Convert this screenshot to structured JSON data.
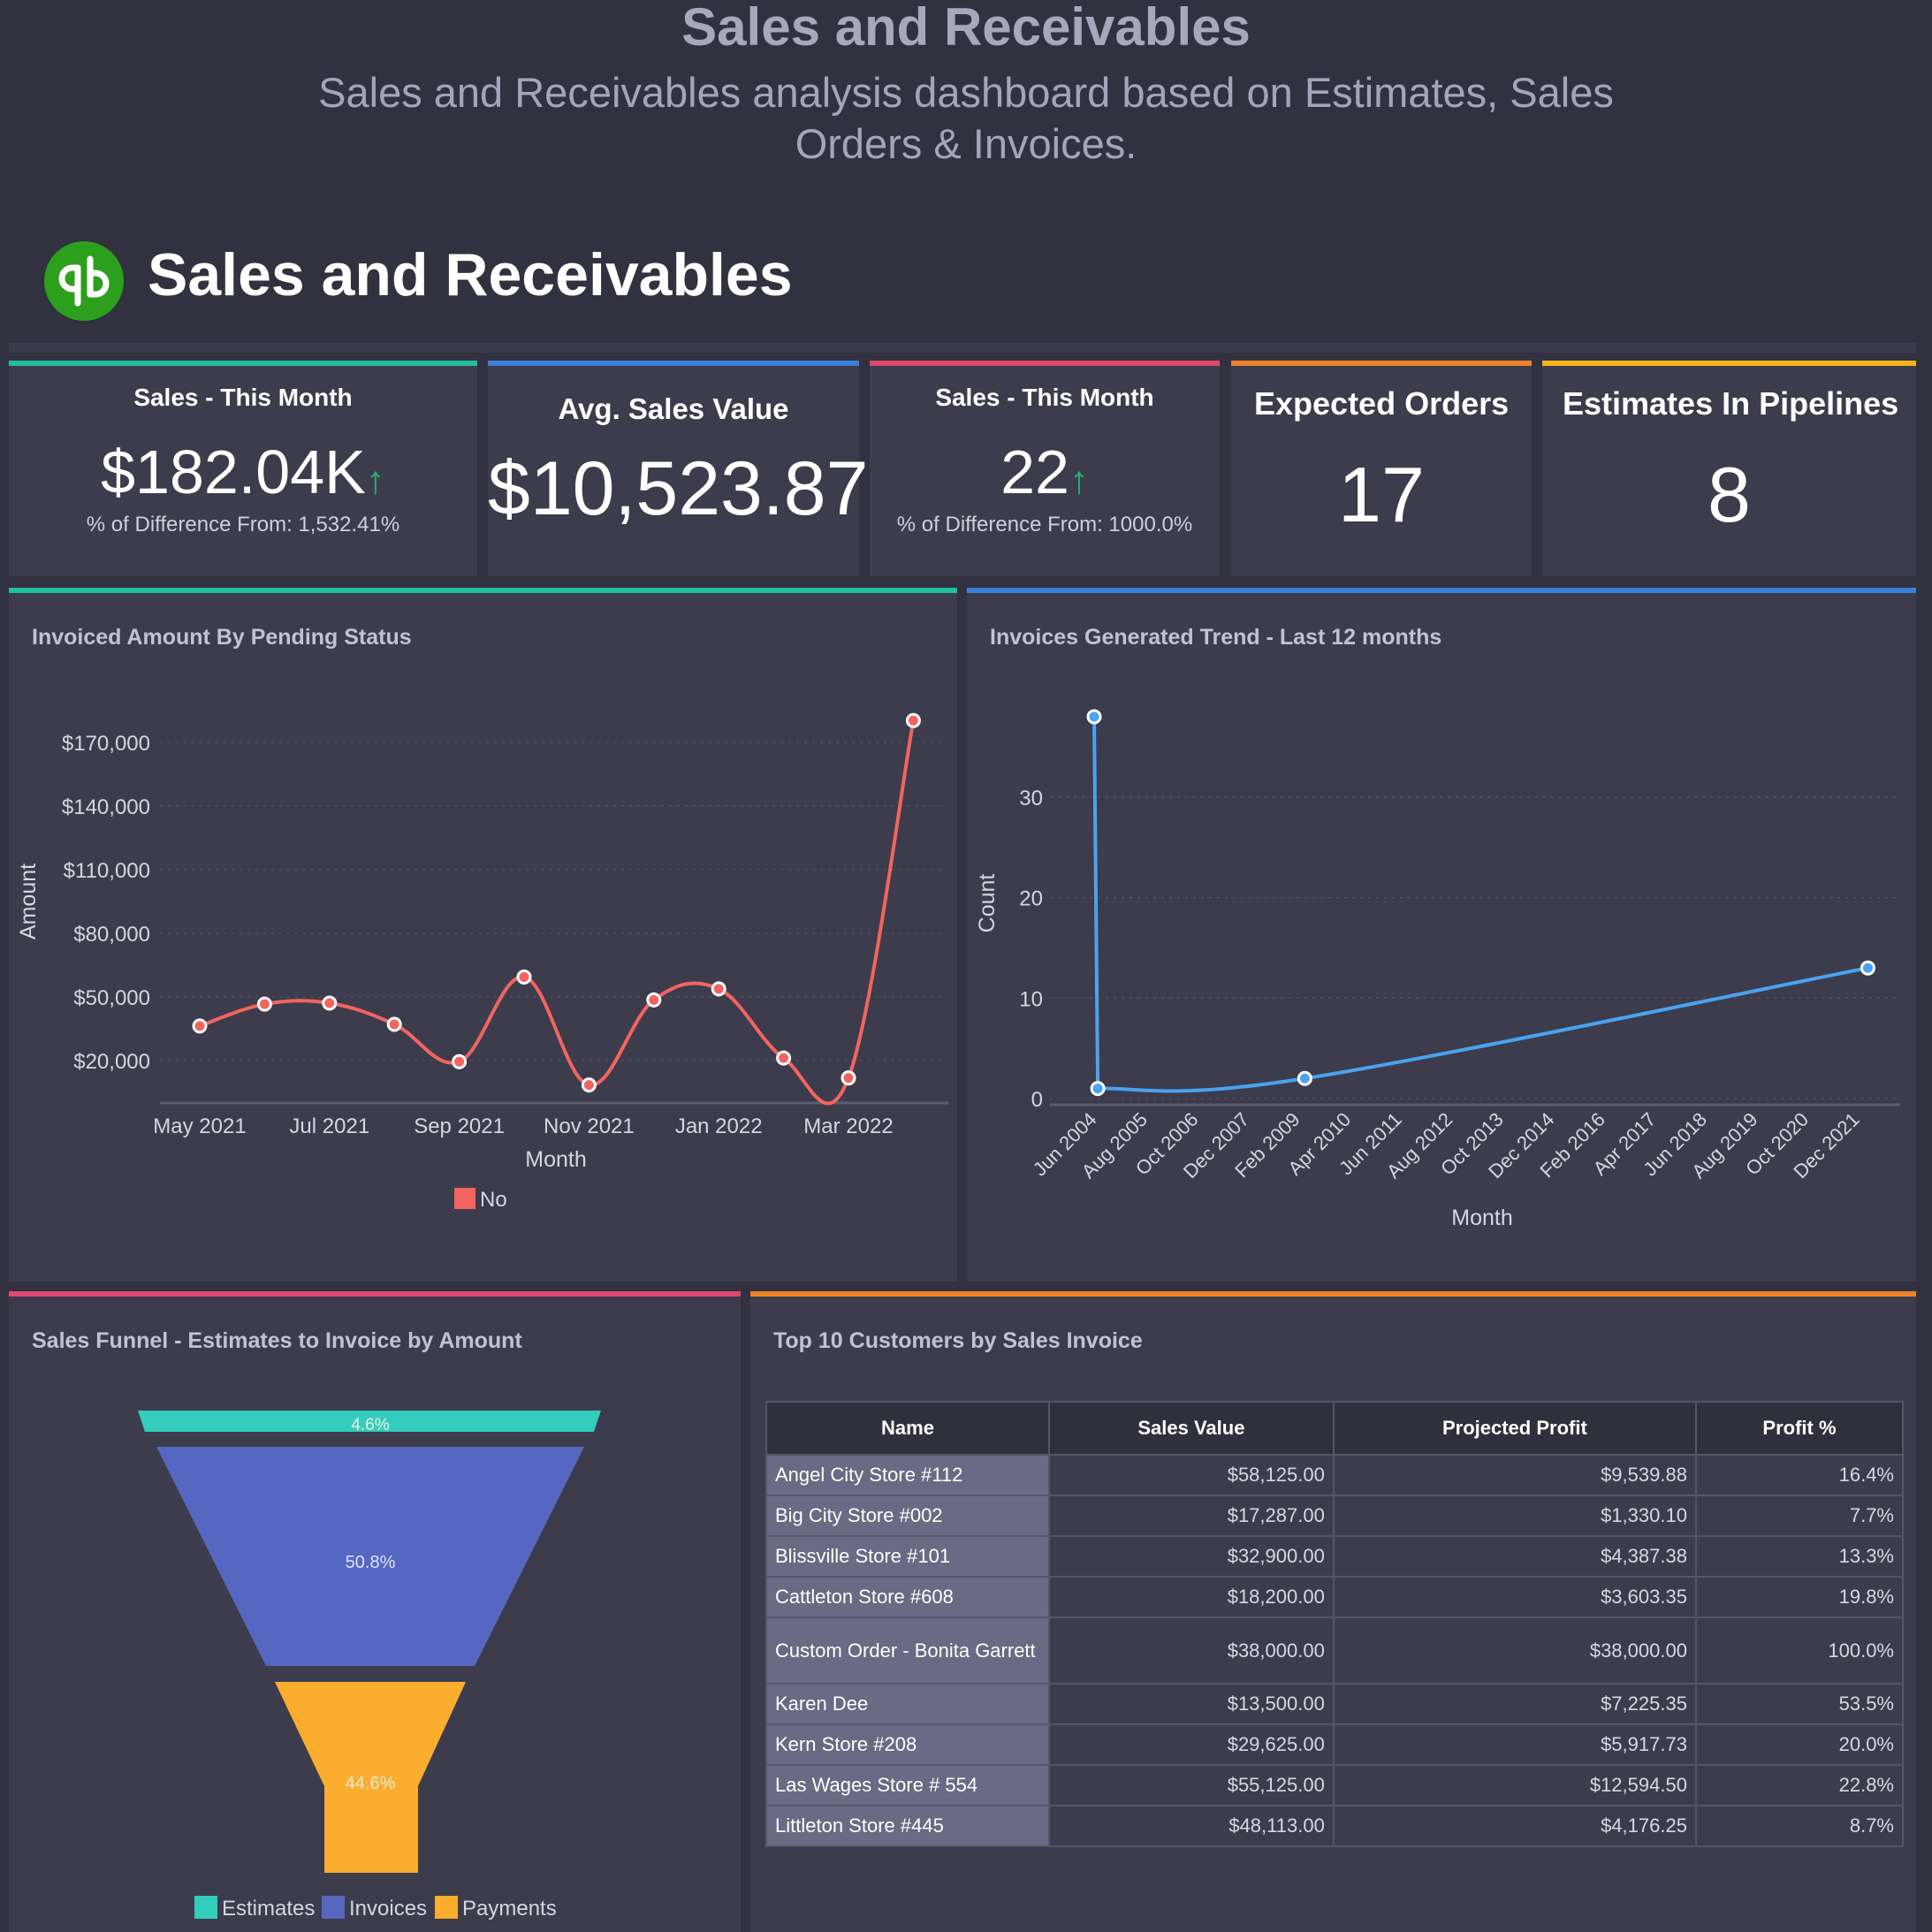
{
  "page": {
    "title": "Sales and Receivables",
    "subtitle": "Sales and Receivables analysis dashboard based on Estimates, Sales Orders & Invoices."
  },
  "header": {
    "title": "Sales and Receivables",
    "logo_icon": "quickbooks-logo",
    "logo_color": "#2ca01c"
  },
  "kpis": [
    {
      "title": "Sales - This Month",
      "value": "$182.04K",
      "trend": "up",
      "diff": "% of Difference From: 1,532.41%",
      "accent": "#1fbf9f"
    },
    {
      "title": "Avg. Sales Value",
      "value": "$10,523.87",
      "accent": "#3a7fd9"
    },
    {
      "title": "Sales - This Month",
      "value": "22",
      "trend": "up",
      "diff": "% of Difference From: 1000.0%",
      "accent": "#e0476b"
    },
    {
      "title": "Expected Orders",
      "value": "17",
      "accent": "#f0822a"
    },
    {
      "title": "Estimates In Pipelines",
      "value": "8",
      "accent": "#f5b41c"
    }
  ],
  "arrow_up": "↑",
  "chart_data": [
    {
      "type": "line",
      "title": "Invoiced Amount By Pending Status",
      "xlabel": "Month",
      "ylabel": "Amount",
      "x": [
        "May 2021",
        "Jun 2021",
        "Jul 2021",
        "Aug 2021",
        "Sep 2021",
        "Oct 2021",
        "Nov 2021",
        "Dec 2021",
        "Jan 2022",
        "Feb 2022",
        "Mar 2022",
        "Apr 2022"
      ],
      "xtick_labels": [
        "May 2021",
        "Jul 2021",
        "Sep 2021",
        "Nov 2021",
        "Jan 2022",
        "Mar 2022"
      ],
      "yticks": [
        "$20,000",
        "$50,000",
        "$80,000",
        "$110,000",
        "$140,000",
        "$170,000"
      ],
      "ytick_values": [
        20000,
        50000,
        80000,
        110000,
        140000,
        170000
      ],
      "ylim": [
        0,
        180000
      ],
      "grid": true,
      "legend": "bottom",
      "series": [
        {
          "name": "No",
          "color": "#f4645f",
          "values": [
            36300,
            46600,
            47100,
            37100,
            19500,
            59400,
            8500,
            48600,
            53800,
            21200,
            11800,
            180300
          ]
        }
      ]
    },
    {
      "type": "line",
      "title": "Invoices Generated Trend - Last 12 months",
      "xlabel": "Month",
      "ylabel": "Count",
      "x": [
        "Jun 2004",
        "Jul 2004",
        "Apr 2009",
        "Mar 2022"
      ],
      "xtick_labels": [
        "Jun 2004",
        "Aug 2005",
        "Oct 2006",
        "Dec 2007",
        "Feb 2009",
        "Apr 2010",
        "Jun 2011",
        "Aug 2012",
        "Oct 2013",
        "Dec 2014",
        "Feb 2016",
        "Apr 2017",
        "Jun 2018",
        "Aug 2019",
        "Oct 2020",
        "Dec 2021"
      ],
      "yticks": [
        "0",
        "10",
        "20",
        "30"
      ],
      "ytick_values": [
        0,
        10,
        20,
        30
      ],
      "ylim": [
        0,
        38
      ],
      "grid": true,
      "series": [
        {
          "color": "#4aa3f0",
          "values": [
            38,
            1,
            2,
            13
          ]
        }
      ]
    },
    {
      "type": "funnel",
      "title": "Sales Funnel - Estimates to Invoice by Amount",
      "legend": "bottom",
      "stages": [
        {
          "name": "Estimates",
          "label": "4.6%",
          "value": 4.6,
          "color": "#33cdbd"
        },
        {
          "name": "Invoices",
          "label": "50.8%",
          "value": 50.8,
          "color": "#5567c0"
        },
        {
          "name": "Payments",
          "label": "44.6%",
          "value": 44.6,
          "color": "#fbad2e"
        }
      ]
    }
  ],
  "table": {
    "title": "Top 10 Customers by Sales Invoice",
    "accent": "#f0822a",
    "columns": [
      "Name",
      "Sales Value",
      "Projected Profit",
      "Profit %"
    ],
    "rows": [
      [
        "Angel City Store #112",
        "$58,125.00",
        "$9,539.88",
        "16.4%"
      ],
      [
        "Big City Store #002",
        "$17,287.00",
        "$1,330.10",
        "7.7%"
      ],
      [
        "Blissville Store #101",
        "$32,900.00",
        "$4,387.38",
        "13.3%"
      ],
      [
        "Cattleton Store #608",
        "$18,200.00",
        "$3,603.35",
        "19.8%"
      ],
      [
        "Custom Order - Bonita Garrett",
        "$38,000.00",
        "$38,000.00",
        "100.0%"
      ],
      [
        "Karen Dee",
        "$13,500.00",
        "$7,225.35",
        "53.5%"
      ],
      [
        "Kern Store #208",
        "$29,625.00",
        "$5,917.73",
        "20.0%"
      ],
      [
        "Las Wages Store # 554",
        "$55,125.00",
        "$12,594.50",
        "22.8%"
      ],
      [
        "Littleton Store #445",
        "$48,113.00",
        "$4,176.25",
        "8.7%"
      ]
    ]
  }
}
